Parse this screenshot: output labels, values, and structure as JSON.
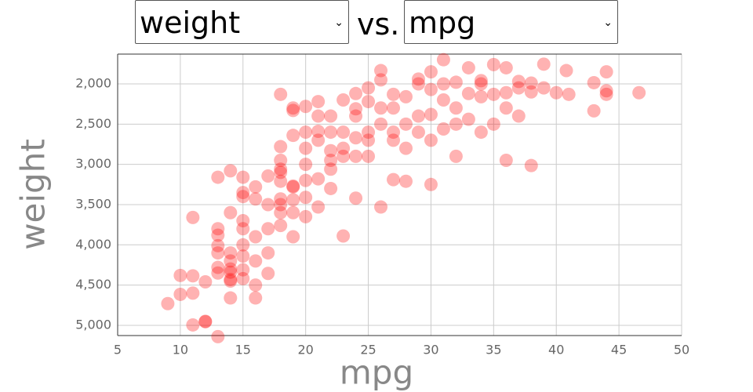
{
  "controls": {
    "y_select": "weight",
    "separator": "vs.",
    "x_select": "mpg"
  },
  "chart_data": {
    "type": "scatter",
    "x_label": "mpg",
    "y_label": "weight",
    "color": "#ff0000",
    "marker_opacity": 0.3,
    "grid": true,
    "xlim": [
      5,
      50
    ],
    "xticks": [
      5,
      10,
      15,
      20,
      25,
      30,
      35,
      40,
      45,
      50
    ],
    "ylim": [
      5127,
      1630
    ],
    "yticks": [
      {
        "value": 2000,
        "label": "2,000"
      },
      {
        "value": 2500,
        "label": "2,500"
      },
      {
        "value": 3000,
        "label": "3,000"
      },
      {
        "value": 3500,
        "label": "3,500"
      },
      {
        "value": 4000,
        "label": "4,000"
      },
      {
        "value": 4500,
        "label": "4,500"
      },
      {
        "value": 5000,
        "label": "5,000"
      }
    ],
    "x": [
      9,
      10,
      10,
      11,
      11,
      11,
      11,
      12,
      12,
      12,
      13,
      13,
      13,
      13,
      13,
      13,
      13,
      13,
      14,
      14,
      14,
      14,
      14,
      14,
      14,
      14,
      14,
      15,
      15,
      15,
      15,
      15,
      15,
      15,
      15,
      15,
      16,
      16,
      16,
      16,
      16,
      16,
      17,
      17,
      17,
      17,
      17,
      18,
      18,
      18,
      18,
      18,
      18,
      18,
      18,
      18,
      18,
      19,
      19,
      19,
      19,
      19,
      19,
      19,
      19,
      20,
      20,
      20,
      20,
      20,
      20,
      20,
      21,
      21,
      21,
      21,
      21,
      21,
      22,
      22,
      22,
      22,
      22,
      22,
      23,
      23,
      23,
      23,
      23,
      24,
      24,
      24,
      24,
      24,
      24,
      25,
      25,
      25,
      25,
      25,
      26,
      26,
      26,
      26,
      26,
      27,
      27,
      27,
      27,
      27,
      28,
      28,
      28,
      28,
      29,
      29,
      29,
      29,
      30,
      30,
      30,
      30,
      30,
      31,
      31,
      31,
      31,
      32,
      32,
      32,
      32,
      33,
      33,
      33,
      34,
      34,
      34,
      34,
      35,
      35,
      35,
      36,
      36,
      36,
      36,
      37,
      37,
      37,
      38,
      38,
      38,
      39,
      39,
      40,
      41,
      43,
      43,
      44,
      44,
      44,
      46.6,
      40.8
    ],
    "values": [
      4730,
      4380,
      4615,
      4600,
      4385,
      3660,
      4995,
      4955,
      4460,
      4950,
      5140,
      4280,
      4350,
      3800,
      4100,
      3160,
      3880,
      4010,
      4430,
      4300,
      4100,
      4660,
      4200,
      3600,
      4450,
      3080,
      4340,
      4140,
      3800,
      3400,
      4000,
      3700,
      4310,
      3350,
      3160,
      4420,
      4660,
      4200,
      3900,
      3430,
      4500,
      3280,
      3800,
      4100,
      3145,
      4355,
      3500,
      3430,
      3500,
      2780,
      3100,
      2950,
      3060,
      3600,
      2130,
      3760,
      3210,
      3270,
      3280,
      3600,
      2300,
      3900,
      2330,
      2640,
      3440,
      3000,
      3200,
      2600,
      3650,
      2280,
      3410,
      2800,
      2400,
      3180,
      2700,
      2590,
      2220,
      3530,
      2830,
      2400,
      3300,
      2600,
      2950,
      3060,
      2600,
      3890,
      2200,
      2900,
      2800,
      2400,
      2900,
      2670,
      3420,
      2120,
      2310,
      2050,
      2220,
      2600,
      2900,
      2700,
      1950,
      1835,
      2300,
      2500,
      3530,
      2130,
      2300,
      2700,
      3190,
      2600,
      2500,
      2160,
      3210,
      2800,
      2000,
      1940,
      2400,
      2600,
      2070,
      1850,
      2380,
      3250,
      2700,
      1700,
      2000,
      2560,
      2200,
      1980,
      2300,
      2900,
      2500,
      1800,
      2120,
      2440,
      2000,
      1960,
      2160,
      2600,
      1760,
      2130,
      2500,
      1800,
      2110,
      2950,
      2300,
      1970,
      2400,
      2050,
      1990,
      3015,
      2100,
      1755,
      2050,
      2110,
      2130,
      1985,
      2335,
      2085,
      1850,
      2130,
      2110,
      1835
    ]
  }
}
